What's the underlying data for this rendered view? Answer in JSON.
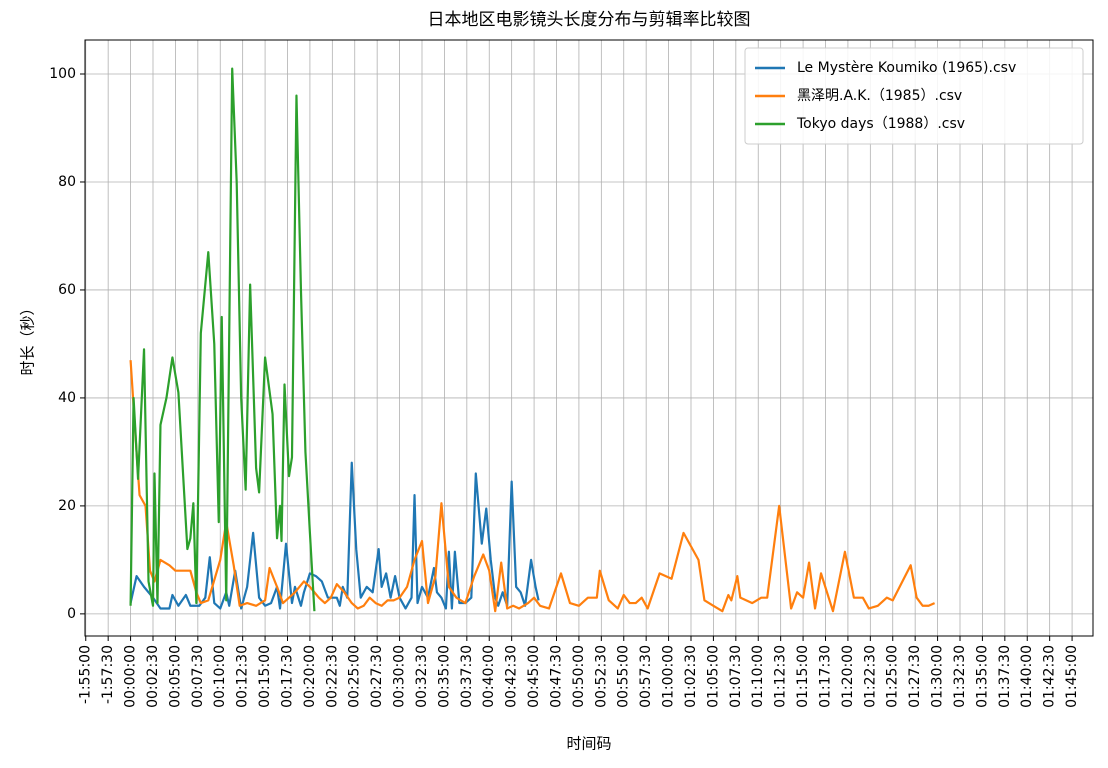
{
  "chart_data": {
    "type": "line",
    "title": "日本地区电影镜头长度分布与剪辑率比较图",
    "xlabel": "时间码",
    "ylabel": "时长（秒）",
    "legend": "upper right",
    "grid": true,
    "xlim": [
      -305,
      6440
    ],
    "ylim": [
      -4.1,
      106.3
    ],
    "yticks": [
      0,
      20,
      40,
      60,
      80,
      100
    ],
    "xticks": [
      {
        "value": -300,
        "label": "-1:55:00"
      },
      {
        "value": -150,
        "label": "-1:57:30"
      },
      {
        "value": 0,
        "label": "00:00:00"
      },
      {
        "value": 150,
        "label": "00:02:30"
      },
      {
        "value": 300,
        "label": "00:05:00"
      },
      {
        "value": 450,
        "label": "00:07:30"
      },
      {
        "value": 600,
        "label": "00:10:00"
      },
      {
        "value": 750,
        "label": "00:12:30"
      },
      {
        "value": 900,
        "label": "00:15:00"
      },
      {
        "value": 1050,
        "label": "00:17:30"
      },
      {
        "value": 1200,
        "label": "00:20:00"
      },
      {
        "value": 1350,
        "label": "00:22:30"
      },
      {
        "value": 1500,
        "label": "00:25:00"
      },
      {
        "value": 1650,
        "label": "00:27:30"
      },
      {
        "value": 1800,
        "label": "00:30:00"
      },
      {
        "value": 1950,
        "label": "00:32:30"
      },
      {
        "value": 2100,
        "label": "00:35:00"
      },
      {
        "value": 2250,
        "label": "00:37:30"
      },
      {
        "value": 2400,
        "label": "00:40:00"
      },
      {
        "value": 2550,
        "label": "00:42:30"
      },
      {
        "value": 2700,
        "label": "00:45:00"
      },
      {
        "value": 2850,
        "label": "00:47:30"
      },
      {
        "value": 3000,
        "label": "00:50:00"
      },
      {
        "value": 3150,
        "label": "00:52:30"
      },
      {
        "value": 3300,
        "label": "00:55:00"
      },
      {
        "value": 3450,
        "label": "00:57:30"
      },
      {
        "value": 3600,
        "label": "01:00:00"
      },
      {
        "value": 3750,
        "label": "01:02:30"
      },
      {
        "value": 3900,
        "label": "01:05:00"
      },
      {
        "value": 4050,
        "label": "01:07:30"
      },
      {
        "value": 4200,
        "label": "01:10:00"
      },
      {
        "value": 4350,
        "label": "01:12:30"
      },
      {
        "value": 4500,
        "label": "01:15:00"
      },
      {
        "value": 4650,
        "label": "01:17:30"
      },
      {
        "value": 4800,
        "label": "01:20:00"
      },
      {
        "value": 4950,
        "label": "01:22:30"
      },
      {
        "value": 5100,
        "label": "01:25:00"
      },
      {
        "value": 5250,
        "label": "01:27:30"
      },
      {
        "value": 5400,
        "label": "01:30:00"
      },
      {
        "value": 5550,
        "label": "01:32:30"
      },
      {
        "value": 5700,
        "label": "01:35:00"
      },
      {
        "value": 5850,
        "label": "01:37:30"
      },
      {
        "value": 6000,
        "label": "01:40:00"
      },
      {
        "value": 6150,
        "label": "01:42:30"
      },
      {
        "value": 6300,
        "label": "01:45:00"
      }
    ],
    "series": [
      {
        "name": "Le Mystère Koumiko (1965).csv",
        "color": "#1f77b4",
        "x": [
          0,
          40,
          90,
          150,
          200,
          260,
          280,
          320,
          370,
          400,
          460,
          500,
          530,
          560,
          600,
          640,
          660,
          700,
          740,
          780,
          820,
          860,
          900,
          940,
          980,
          1000,
          1040,
          1080,
          1100,
          1140,
          1160,
          1200,
          1240,
          1280,
          1320,
          1380,
          1400,
          1420,
          1450,
          1480,
          1510,
          1540,
          1580,
          1620,
          1660,
          1680,
          1710,
          1740,
          1770,
          1800,
          1840,
          1880,
          1900,
          1920,
          1950,
          1990,
          2030,
          2050,
          2080,
          2110,
          2130,
          2150,
          2170,
          2200,
          2240,
          2280,
          2310,
          2350,
          2380,
          2410,
          2440,
          2460,
          2490,
          2520,
          2550,
          2580,
          2610,
          2640,
          2680,
          2710,
          2730
        ],
        "values": [
          2,
          7,
          5,
          3,
          1,
          1,
          3.5,
          1.5,
          3.5,
          1.5,
          1.5,
          3,
          10.5,
          2,
          1,
          4,
          1.5,
          8,
          1,
          5,
          15,
          3,
          1.5,
          2,
          5,
          1,
          13,
          2,
          5,
          1.5,
          4,
          7.5,
          7,
          6,
          3,
          3,
          1.5,
          5,
          3,
          28,
          12,
          3,
          5,
          4,
          12,
          5,
          7.5,
          3,
          7,
          3,
          1,
          3,
          22,
          2,
          5,
          3,
          8.5,
          4,
          3,
          1,
          11.5,
          1,
          11.5,
          2,
          2,
          3,
          26,
          13,
          19.5,
          10,
          3,
          1.5,
          4,
          1.5,
          24.5,
          5,
          4,
          1.5,
          10,
          5,
          2.5
        ]
      },
      {
        "name": "黑泽明.A.K.（1985）.csv",
        "color": "#ff7f0e",
        "x": [
          0,
          40,
          60,
          100,
          130,
          160,
          200,
          260,
          300,
          400,
          440,
          470,
          520,
          600,
          640,
          690,
          730,
          780,
          840,
          900,
          930,
          980,
          1020,
          1060,
          1100,
          1160,
          1200,
          1260,
          1300,
          1340,
          1380,
          1430,
          1480,
          1520,
          1560,
          1600,
          1640,
          1680,
          1720,
          1760,
          1800,
          1850,
          1900,
          1950,
          1990,
          2040,
          2080,
          2130,
          2180,
          2240,
          2300,
          2360,
          2400,
          2440,
          2480,
          2520,
          2560,
          2600,
          2660,
          2700,
          2740,
          2800,
          2880,
          2940,
          3000,
          3060,
          3120,
          3140,
          3200,
          3260,
          3300,
          3340,
          3380,
          3420,
          3460,
          3540,
          3620,
          3700,
          3800,
          3840,
          3900,
          3960,
          4000,
          4020,
          4060,
          4080,
          4160,
          4220,
          4260,
          4340,
          4420,
          4460,
          4500,
          4540,
          4580,
          4620,
          4700,
          4780,
          4840,
          4900,
          4940,
          5000,
          5060,
          5100,
          5220,
          5260,
          5300,
          5340,
          5380
        ],
        "values": [
          47,
          30,
          22,
          20,
          8,
          6,
          10,
          9,
          8,
          8,
          4,
          2,
          2.5,
          10,
          17,
          9,
          1.5,
          2,
          1.5,
          2.5,
          8.5,
          5,
          2,
          3,
          4,
          6,
          5,
          3,
          2,
          3,
          5.5,
          4,
          2,
          1,
          1.5,
          3,
          2,
          1.5,
          2.5,
          2.5,
          3,
          5,
          10,
          13.5,
          2,
          7,
          20.5,
          5,
          3,
          2,
          7,
          11,
          8,
          0.5,
          9.5,
          1,
          1.5,
          1,
          2,
          3,
          1.5,
          1,
          7.5,
          2,
          1.5,
          3,
          3,
          8,
          2.5,
          1,
          3.5,
          2,
          2,
          3,
          1,
          7.5,
          6.5,
          15,
          10,
          2.5,
          1.5,
          0.5,
          3.5,
          2.5,
          7,
          3,
          2,
          3,
          3,
          20,
          1,
          4,
          3,
          9.5,
          1,
          7.5,
          0.5,
          11.5,
          3,
          3,
          1,
          1.5,
          3,
          2.5,
          9,
          3,
          1.5,
          1.5,
          2
        ]
      },
      {
        "name": "Tokyo days（1988）.csv",
        "color": "#2ca02c",
        "x": [
          0,
          20,
          50,
          90,
          120,
          150,
          160,
          180,
          200,
          240,
          280,
          320,
          380,
          400,
          420,
          440,
          470,
          520,
          560,
          590,
          610,
          640,
          680,
          710,
          740,
          770,
          800,
          840,
          860,
          900,
          950,
          980,
          1000,
          1010,
          1030,
          1060,
          1080,
          1110,
          1140,
          1170,
          1200,
          1230
        ],
        "values": [
          1.5,
          40,
          25,
          49,
          6,
          1.5,
          26,
          2,
          35,
          40,
          47.5,
          41,
          12,
          14,
          20.5,
          2,
          52,
          67,
          50,
          17,
          55,
          2.5,
          101,
          80,
          40,
          23,
          61,
          27,
          22.5,
          47.5,
          37,
          14,
          20,
          13.5,
          42.5,
          25.5,
          29,
          96,
          60,
          30,
          15,
          0.5
        ]
      }
    ]
  }
}
